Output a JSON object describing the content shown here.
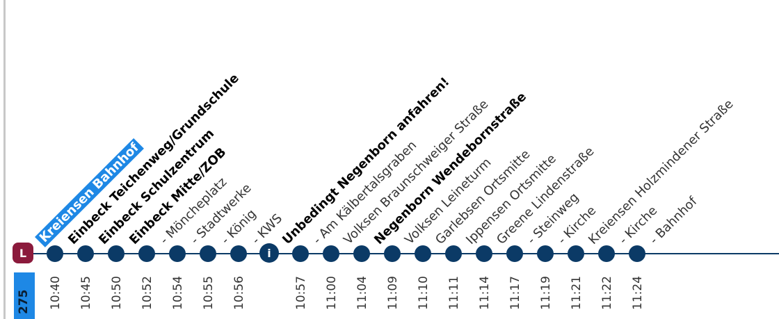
{
  "line_badge": "L",
  "info_badge": "i",
  "route_number": "275",
  "stops": [
    {
      "name": "Kreiensen Bahnhof",
      "time": "10:40"
    },
    {
      "name": "Einbeck Teichenweg/Grundschule",
      "time": "10:45"
    },
    {
      "name": "Einbeck Schulzentrum",
      "time": "10:50"
    },
    {
      "name": "Einbeck Mitte/ZOB",
      "time": "10:52"
    },
    {
      "name": "- Möncheplatz",
      "time": "10:54"
    },
    {
      "name": "- Stadtwerke",
      "time": "10:55"
    },
    {
      "name": "- König",
      "time": "10:56"
    },
    {
      "name": "- KWS",
      "time": ""
    },
    {
      "name": "Unbedingt Negenborn anfahren!",
      "time": "10:57"
    },
    {
      "name": "- Am Kälbertalsgraben",
      "time": "11:00"
    },
    {
      "name": "Volksen Braunschweiger Straße",
      "time": "11:04"
    },
    {
      "name": "Negenborn Wendebornstraße",
      "time": "11:09"
    },
    {
      "name": "Volksen Leineturm",
      "time": "11:10"
    },
    {
      "name": "Garlebsen Ortsmitte",
      "time": "11:11"
    },
    {
      "name": "Ippensen Ortsmitte",
      "time": "11:14"
    },
    {
      "name": "Greene Lindenstraße",
      "time": "11:17"
    },
    {
      "name": "- Steinweg",
      "time": "11:19"
    },
    {
      "name": "- Kirche",
      "time": "11:21"
    },
    {
      "name": "Kreiensen Holzmindener Straße",
      "time": "11:22"
    },
    {
      "name": "- Kirche",
      "time": "11:24"
    },
    {
      "name": "- Bahnhof",
      "time": ""
    }
  ]
}
